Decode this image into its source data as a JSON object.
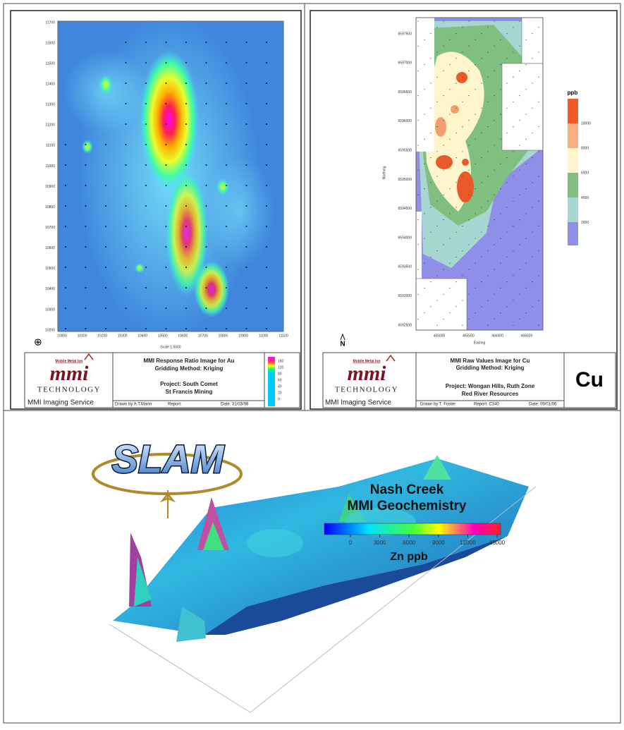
{
  "panel1": {
    "yticks": [
      11700,
      11600,
      11500,
      11400,
      11300,
      11200,
      11100,
      11000,
      10900,
      10800,
      10700,
      10600,
      10500,
      10400,
      10300,
      10200
    ],
    "xticks": [
      10000,
      10100,
      10200,
      10300,
      10400,
      10500,
      10600,
      10700,
      10800,
      10900,
      11000,
      11100
    ],
    "scale": "Scale 1:5000",
    "logo": {
      "top": "Mobile Metal Ion",
      "name": "mmi",
      "tech": "TECHNOLOGY",
      "service": "MMI Imaging Service"
    },
    "title": "MMI Response Ratio Image for Au",
    "method": "Gridding Method: Kriging",
    "project": "Project:  South Comet",
    "client": "St Francis Mining",
    "drawn": "Drawn by A.T.Mann",
    "report": "Report:",
    "date": "Date: 31/03/98",
    "legend": [
      160,
      120,
      80,
      60,
      40,
      20,
      0
    ]
  },
  "panel2": {
    "yticks": [
      6597500,
      6597000,
      6596500,
      6596000,
      6595500,
      6595000,
      6594500,
      6594000,
      6593500,
      6593000,
      6592500
    ],
    "xticks": [
      465000,
      465500,
      466000,
      466500
    ],
    "xlabel": "Easting",
    "ylabel": "Northing",
    "north": "N",
    "legend_title": "ppb",
    "legend": [
      10000,
      8000,
      6000,
      4000,
      2000
    ],
    "logo": {
      "top": "Mobile Metal Ion",
      "name": "mmi",
      "tech": "TECHNOLOGY",
      "service": "MMI Imaging Service"
    },
    "title": "MMI Raw Values Image for Cu",
    "method": "Gridding Method: Kriging",
    "project": "Project:  Wongan Hills, Ruth Zone",
    "client": "Red River Resources",
    "drawn": "Drawn by T. Foster",
    "report": "Report: C340",
    "date": "Date: 09/01/06",
    "element": "Cu"
  },
  "panel3": {
    "logo": "SLAM",
    "title1": "Nash Creek",
    "title2": "MMI Geochemistry",
    "colorbar_ticks": [
      0,
      3000,
      6000,
      9000,
      12000,
      15000
    ],
    "colorbar_label": "Zn ppb"
  }
}
